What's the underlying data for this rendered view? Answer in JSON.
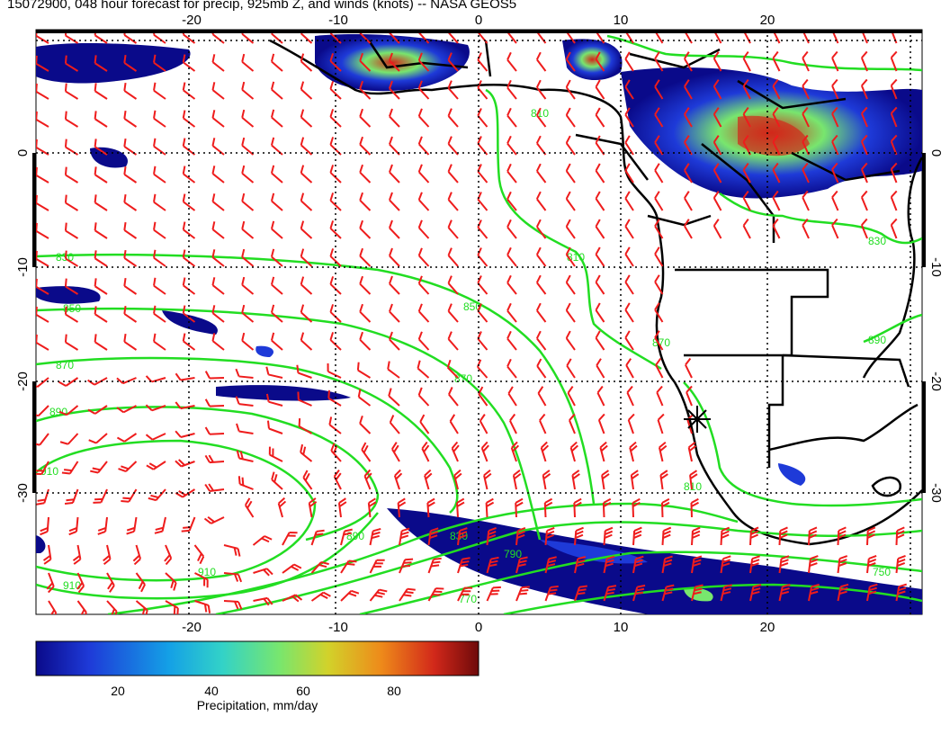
{
  "title": "15072900, 048 hour forecast for precip, 925mb Z, and winds (knots) -- NASA GEOS5",
  "map": {
    "lon_range": [
      -30,
      30
    ],
    "lat_range": [
      -40,
      10
    ],
    "x_ticks": [
      "-20",
      "-10",
      "0",
      "10",
      "20"
    ],
    "y_ticks": [
      "0",
      "-10",
      "-20",
      "-30"
    ],
    "gridlines": "dotted",
    "contour_color": "#22dd22",
    "barb_color": "#ee1c1c",
    "coast_color": "#000000"
  },
  "contour_labels": [
    "830",
    "850",
    "870",
    "890",
    "910",
    "810",
    "790",
    "770",
    "750"
  ],
  "colorbar": {
    "ticks": [
      "20",
      "40",
      "60",
      "80"
    ],
    "label": "Precipitation, mm/day",
    "colors": [
      "#0a0a8a",
      "#1e3ad8",
      "#14a0e6",
      "#32d2c8",
      "#78e66e",
      "#d2d22a",
      "#ee8a1a",
      "#d2281a",
      "#6e0a0a"
    ]
  }
}
